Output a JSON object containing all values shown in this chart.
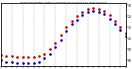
{
  "title": "Milwaukee Weather Outdoor Temperature (vs) Wind Chill (Last 24 Hours)",
  "temp": [
    15,
    14,
    14,
    13,
    13,
    13,
    13,
    14,
    16,
    20,
    26,
    33,
    40,
    46,
    50,
    54,
    57,
    58,
    57,
    55,
    51,
    46,
    40,
    35
  ],
  "windchill": [
    10,
    9,
    9,
    8,
    8,
    8,
    8,
    9,
    12,
    16,
    22,
    29,
    37,
    43,
    47,
    51,
    54,
    55,
    54,
    52,
    48,
    43,
    38,
    32
  ],
  "hours": [
    0,
    1,
    2,
    3,
    4,
    5,
    6,
    7,
    8,
    9,
    10,
    11,
    12,
    13,
    14,
    15,
    16,
    17,
    18,
    19,
    20,
    21,
    22,
    23
  ],
  "temp_color": "#cc0000",
  "windchill_color": "#0000bb",
  "background": "#ffffff",
  "grid_color": "#888888",
  "ylim": [
    5,
    62
  ],
  "xlim": [
    0,
    23
  ],
  "yticks": [
    10,
    20,
    30,
    40,
    50,
    60
  ],
  "ylabel_right": [
    "60",
    "50",
    "40",
    "30",
    "20",
    "10"
  ]
}
